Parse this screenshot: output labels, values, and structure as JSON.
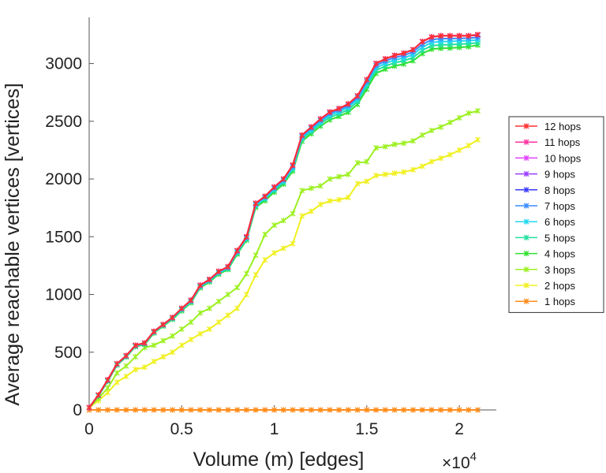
{
  "chart_data": {
    "type": "line",
    "title": "",
    "xlabel": "Volume (m) [edges]",
    "ylabel": "Average reachable vertices [vertices]",
    "x_exponent_base": "×10",
    "x_exponent_power": "4",
    "xlim": [
      0,
      2.2
    ],
    "ylim": [
      0,
      3400
    ],
    "xticks": [
      0,
      0.5,
      1,
      1.5,
      2
    ],
    "xtick_labels": [
      "0",
      "0.5",
      "1",
      "1.5",
      "2"
    ],
    "yticks": [
      0,
      500,
      1000,
      1500,
      2000,
      2500,
      3000
    ],
    "ytick_labels": [
      "0",
      "500",
      "1000",
      "1500",
      "2000",
      "2500",
      "3000"
    ],
    "legend_position": "right",
    "x": [
      0,
      0.05,
      0.1,
      0.15,
      0.2,
      0.25,
      0.3,
      0.35,
      0.4,
      0.45,
      0.5,
      0.55,
      0.6,
      0.65,
      0.7,
      0.75,
      0.8,
      0.85,
      0.9,
      0.95,
      1.0,
      1.05,
      1.1,
      1.15,
      1.2,
      1.25,
      1.3,
      1.35,
      1.4,
      1.45,
      1.5,
      1.55,
      1.6,
      1.65,
      1.7,
      1.75,
      1.8,
      1.85,
      1.9,
      1.95,
      2.0,
      2.05,
      2.1
    ],
    "series": [
      {
        "name": "12 hops",
        "color": "#ff3030",
        "values": [
          20,
          130,
          260,
          400,
          470,
          560,
          580,
          680,
          740,
          800,
          880,
          950,
          1080,
          1130,
          1200,
          1240,
          1380,
          1500,
          1790,
          1850,
          1930,
          2000,
          2120,
          2380,
          2450,
          2520,
          2580,
          2610,
          2650,
          2720,
          2860,
          3000,
          3040,
          3070,
          3090,
          3120,
          3190,
          3230,
          3240,
          3240,
          3240,
          3240,
          3250
        ]
      },
      {
        "name": "11 hops",
        "color": "#ff2fa0",
        "values": [
          20,
          130,
          260,
          400,
          470,
          560,
          580,
          680,
          740,
          800,
          880,
          950,
          1080,
          1130,
          1200,
          1240,
          1380,
          1500,
          1790,
          1850,
          1930,
          2000,
          2120,
          2380,
          2450,
          2520,
          2580,
          2610,
          2650,
          2720,
          2860,
          3000,
          3040,
          3070,
          3090,
          3120,
          3190,
          3230,
          3240,
          3240,
          3240,
          3240,
          3250
        ]
      },
      {
        "name": "10 hops",
        "color": "#e040ff",
        "values": [
          20,
          130,
          260,
          400,
          470,
          560,
          580,
          680,
          740,
          800,
          880,
          950,
          1080,
          1130,
          1200,
          1240,
          1380,
          1500,
          1790,
          1850,
          1930,
          2000,
          2120,
          2380,
          2450,
          2520,
          2580,
          2610,
          2650,
          2720,
          2860,
          3000,
          3040,
          3070,
          3090,
          3120,
          3190,
          3230,
          3240,
          3240,
          3240,
          3240,
          3250
        ]
      },
      {
        "name": "9 hops",
        "color": "#9a3cff",
        "values": [
          20,
          130,
          260,
          400,
          470,
          560,
          580,
          680,
          740,
          800,
          880,
          950,
          1080,
          1130,
          1200,
          1240,
          1380,
          1500,
          1790,
          1850,
          1930,
          2000,
          2120,
          2380,
          2450,
          2520,
          2580,
          2610,
          2650,
          2720,
          2860,
          3000,
          3040,
          3070,
          3090,
          3120,
          3190,
          3230,
          3240,
          3240,
          3240,
          3240,
          3250
        ]
      },
      {
        "name": "8 hops",
        "color": "#3a3aff",
        "values": [
          20,
          130,
          260,
          400,
          470,
          560,
          580,
          680,
          740,
          800,
          880,
          950,
          1080,
          1130,
          1200,
          1240,
          1380,
          1500,
          1790,
          1850,
          1930,
          2000,
          2120,
          2380,
          2450,
          2520,
          2580,
          2610,
          2650,
          2720,
          2860,
          3000,
          3040,
          3070,
          3090,
          3120,
          3190,
          3230,
          3240,
          3240,
          3240,
          3240,
          3245
        ]
      },
      {
        "name": "7 hops",
        "color": "#3a8cff",
        "values": [
          20,
          128,
          258,
          398,
          468,
          558,
          578,
          678,
          738,
          798,
          876,
          946,
          1076,
          1126,
          1195,
          1235,
          1374,
          1494,
          1784,
          1844,
          1922,
          1992,
          2110,
          2370,
          2440,
          2508,
          2568,
          2598,
          2636,
          2706,
          2844,
          2982,
          3022,
          3052,
          3070,
          3100,
          3166,
          3206,
          3216,
          3216,
          3218,
          3220,
          3225
        ]
      },
      {
        "name": "6 hops",
        "color": "#20d8f0",
        "values": [
          20,
          126,
          255,
          395,
          465,
          555,
          575,
          675,
          735,
          795,
          872,
          942,
          1072,
          1122,
          1190,
          1230,
          1368,
          1488,
          1776,
          1836,
          1912,
          1982,
          2098,
          2358,
          2426,
          2494,
          2552,
          2582,
          2620,
          2690,
          2826,
          2962,
          3002,
          3030,
          3048,
          3078,
          3142,
          3182,
          3190,
          3192,
          3195,
          3198,
          3205
        ]
      },
      {
        "name": "5 hops",
        "color": "#20e0a0",
        "values": [
          20,
          124,
          252,
          392,
          462,
          552,
          572,
          672,
          732,
          790,
          866,
          936,
          1066,
          1116,
          1184,
          1224,
          1360,
          1480,
          1766,
          1826,
          1900,
          1970,
          2084,
          2344,
          2410,
          2478,
          2534,
          2564,
          2600,
          2670,
          2804,
          2940,
          2978,
          3006,
          3024,
          3052,
          3114,
          3154,
          3162,
          3164,
          3168,
          3172,
          3180
        ]
      },
      {
        "name": "4 hops",
        "color": "#30e030",
        "values": [
          20,
          120,
          248,
          388,
          458,
          548,
          566,
          666,
          726,
          784,
          858,
          928,
          1058,
          1108,
          1176,
          1216,
          1350,
          1470,
          1754,
          1812,
          1886,
          1956,
          2068,
          2326,
          2392,
          2458,
          2512,
          2542,
          2578,
          2646,
          2778,
          2914,
          2952,
          2978,
          2996,
          3024,
          3086,
          3124,
          3132,
          3134,
          3140,
          3146,
          3160
        ]
      },
      {
        "name": "3 hops",
        "color": "#9cf020",
        "values": [
          20,
          100,
          190,
          320,
          380,
          460,
          540,
          560,
          600,
          640,
          700,
          760,
          840,
          880,
          940,
          1000,
          1060,
          1180,
          1340,
          1520,
          1600,
          1640,
          1700,
          1900,
          1920,
          1940,
          2000,
          2020,
          2040,
          2140,
          2150,
          2270,
          2280,
          2300,
          2310,
          2330,
          2380,
          2420,
          2450,
          2490,
          2530,
          2570,
          2590
        ]
      },
      {
        "name": "2 hops",
        "color": "#f0f020",
        "values": [
          20,
          80,
          150,
          240,
          290,
          350,
          370,
          420,
          460,
          500,
          560,
          610,
          660,
          700,
          760,
          820,
          880,
          1000,
          1170,
          1300,
          1360,
          1400,
          1440,
          1680,
          1720,
          1780,
          1810,
          1820,
          1840,
          1960,
          1980,
          2030,
          2040,
          2050,
          2060,
          2080,
          2110,
          2150,
          2180,
          2210,
          2250,
          2290,
          2340
        ]
      },
      {
        "name": "1 hops",
        "color": "#ff8c1a",
        "values": [
          0,
          0,
          0,
          0,
          0,
          0,
          0,
          0,
          0,
          0,
          0,
          0,
          0,
          0,
          0,
          0,
          0,
          0,
          0,
          0,
          0,
          0,
          0,
          0,
          0,
          0,
          0,
          0,
          0,
          0,
          0,
          0,
          0,
          0,
          0,
          0,
          0,
          0,
          0,
          0,
          0,
          0,
          0
        ]
      }
    ]
  }
}
